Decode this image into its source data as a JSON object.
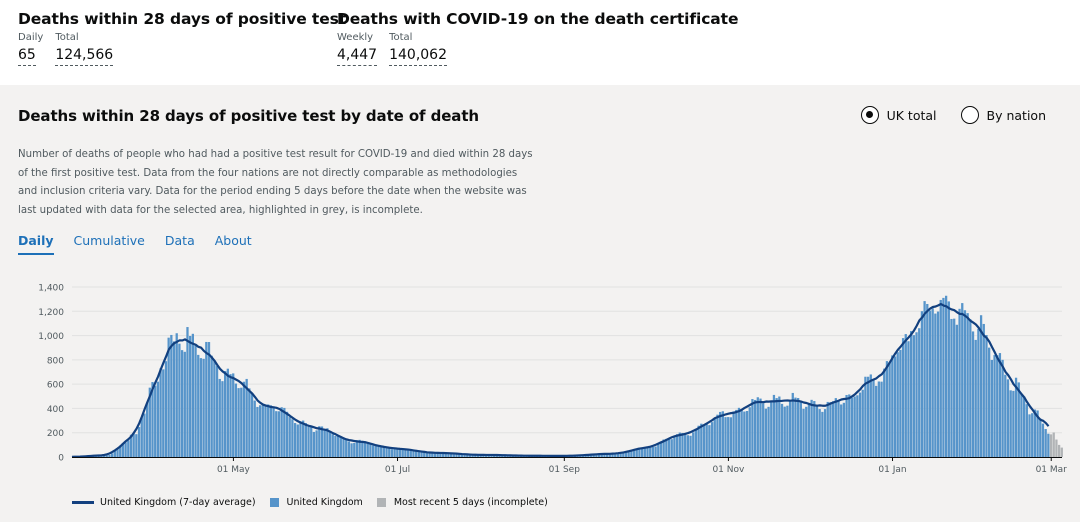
{
  "headlines": [
    {
      "title": "Deaths within 28 days of positive test",
      "metrics": [
        {
          "label": "Daily",
          "value": "65"
        },
        {
          "label": "Total",
          "value": "124,566"
        }
      ]
    },
    {
      "title": "Deaths with COVID-19 on the death certificate",
      "metrics": [
        {
          "label": "Weekly",
          "value": "4,447"
        },
        {
          "label": "Total",
          "value": "140,062"
        }
      ]
    }
  ],
  "card": {
    "title": "Deaths within 28 days of positive test by date of death",
    "radios": [
      {
        "label": "UK total",
        "checked": true
      },
      {
        "label": "By nation",
        "checked": false
      }
    ],
    "description": "Number of deaths of people who had had a positive test result for COVID-19 and died within 28 days of the first positive test. Data from the four nations are not directly comparable as methodologies and inclusion criteria vary. Data for the period ending 5 days before the date when the website was last updated with data for the selected area, highlighted in grey, is incomplete.",
    "tabs": [
      "Daily",
      "Cumulative",
      "Data",
      "About"
    ],
    "active_tab": "Daily"
  },
  "legend": [
    {
      "label": "United Kingdom (7-day average)",
      "kind": "line",
      "color": "#12407f"
    },
    {
      "label": "United Kingdom",
      "kind": "box",
      "color": "#5694ca"
    },
    {
      "label": "Most recent 5 days (incomplete)",
      "kind": "box",
      "color": "#b1b4b6"
    }
  ],
  "chart_data": {
    "type": "bar",
    "x_range": [
      "2020-03-02",
      "2021-03-05"
    ],
    "ylim": [
      0,
      1400
    ],
    "y_ticks": [
      0,
      200,
      400,
      600,
      800,
      1000,
      1200,
      1400
    ],
    "x_ticks": [
      {
        "date": "2020-05-01",
        "label": "01 May"
      },
      {
        "date": "2020-07-01",
        "label": "01 Jul"
      },
      {
        "date": "2020-09-01",
        "label": "01 Sep"
      },
      {
        "date": "2020-11-01",
        "label": "01 Nov"
      },
      {
        "date": "2021-01-01",
        "label": "01 Jan"
      },
      {
        "date": "2021-03-01",
        "label": "01 Mar"
      }
    ],
    "incomplete_days": 5,
    "series": [
      {
        "name": "United Kingdom",
        "kind": "bars",
        "color": "#5694ca",
        "incomplete_color": "#b1b4b6",
        "approx_profile": [
          [
            "2020-03-02",
            1
          ],
          [
            "2020-03-15",
            15
          ],
          [
            "2020-03-25",
            170
          ],
          [
            "2020-04-01",
            560
          ],
          [
            "2020-04-08",
            950
          ],
          [
            "2020-04-12",
            985
          ],
          [
            "2020-04-20",
            880
          ],
          [
            "2020-05-01",
            640
          ],
          [
            "2020-05-15",
            400
          ],
          [
            "2020-06-01",
            240
          ],
          [
            "2020-06-15",
            130
          ],
          [
            "2020-07-01",
            70
          ],
          [
            "2020-07-15",
            35
          ],
          [
            "2020-08-01",
            18
          ],
          [
            "2020-08-20",
            10
          ],
          [
            "2020-09-01",
            9
          ],
          [
            "2020-09-20",
            28
          ],
          [
            "2020-10-01",
            75
          ],
          [
            "2020-10-15",
            190
          ],
          [
            "2020-11-01",
            360
          ],
          [
            "2020-11-15",
            460
          ],
          [
            "2020-11-25",
            465
          ],
          [
            "2020-12-05",
            415
          ],
          [
            "2020-12-15",
            480
          ],
          [
            "2020-12-25",
            630
          ],
          [
            "2021-01-05",
            920
          ],
          [
            "2021-01-12",
            1180
          ],
          [
            "2021-01-19",
            1295
          ],
          [
            "2021-01-25",
            1230
          ],
          [
            "2021-02-01",
            1080
          ],
          [
            "2021-02-08",
            860
          ],
          [
            "2021-02-15",
            600
          ],
          [
            "2021-02-22",
            400
          ],
          [
            "2021-03-01",
            200
          ],
          [
            "2021-03-05",
            80
          ]
        ]
      },
      {
        "name": "United Kingdom (7-day average)",
        "kind": "line",
        "color": "#12407f"
      }
    ]
  }
}
